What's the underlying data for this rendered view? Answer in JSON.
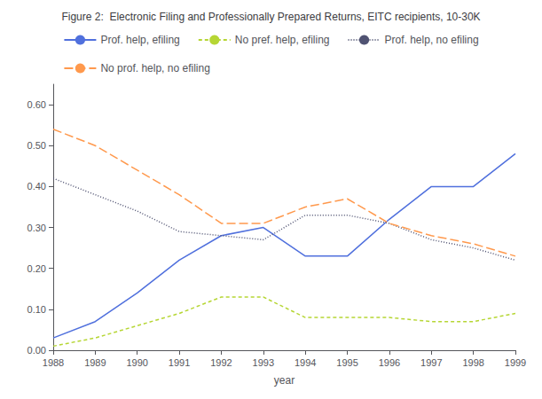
{
  "chart_data": {
    "type": "line",
    "title": "Figure 2:  Electronic Filing and Professionally Prepared Returns, EITC recipients, 10-30K",
    "xlabel": "year",
    "x": [
      1988,
      1989,
      1990,
      1991,
      1992,
      1993,
      1994,
      1995,
      1996,
      1997,
      1998,
      1999
    ],
    "series": [
      {
        "name": "Prof. help, efiling",
        "line_style": "solid",
        "values": [
          0.03,
          0.07,
          0.14,
          0.22,
          0.28,
          0.3,
          0.23,
          0.23,
          0.32,
          0.4,
          0.4,
          0.48
        ]
      },
      {
        "name": "No pref. help, efiling",
        "line_style": "dashed",
        "values": [
          0.01,
          0.03,
          0.06,
          0.09,
          0.13,
          0.13,
          0.08,
          0.08,
          0.08,
          0.07,
          0.07,
          0.09
        ]
      },
      {
        "name": "Prof. help, no efiling",
        "line_style": "dotted",
        "values": [
          0.42,
          0.38,
          0.34,
          0.29,
          0.28,
          0.27,
          0.33,
          0.33,
          0.31,
          0.27,
          0.25,
          0.22
        ]
      },
      {
        "name": "No prof. help, no efiling",
        "line_style": "longdash",
        "values": [
          0.54,
          0.5,
          0.44,
          0.38,
          0.31,
          0.31,
          0.35,
          0.37,
          0.31,
          0.28,
          0.26,
          0.23
        ]
      }
    ],
    "xlim": [
      1988,
      1999
    ],
    "xticks": [
      1988,
      1989,
      1990,
      1991,
      1992,
      1993,
      1994,
      1995,
      1996,
      1997,
      1998,
      1999
    ],
    "ylim": [
      0.0,
      0.65
    ],
    "yticks": [
      {
        "value": 0.0,
        "label": "0.00"
      },
      {
        "value": 0.1,
        "label": "0.10"
      },
      {
        "value": 0.2,
        "label": "0.20"
      },
      {
        "value": 0.3,
        "label": "0.30"
      },
      {
        "value": 0.4,
        "label": "0.40"
      },
      {
        "value": 0.5,
        "label": "0.50"
      },
      {
        "value": 0.6,
        "label": "0.60"
      }
    ],
    "grid": false,
    "legend": "top"
  }
}
